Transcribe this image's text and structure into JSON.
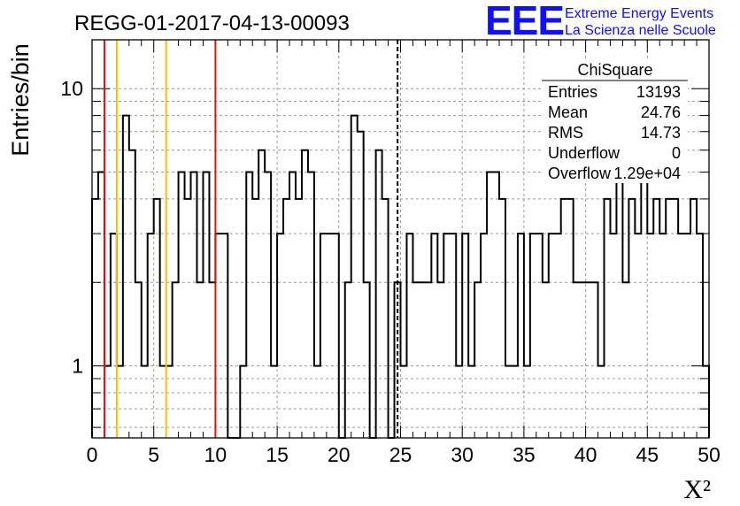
{
  "header": {
    "title": "REGG-01-2017-04-13-00093",
    "logo_text": "EEE",
    "logo_line1": "Extreme Energy Events",
    "logo_line2": "La Scienza nelle Scuole"
  },
  "stats": {
    "name": "ChiSquare",
    "rows": [
      {
        "label": "Entries",
        "value": "13193"
      },
      {
        "label": "Mean",
        "value": "24.76"
      },
      {
        "label": "RMS",
        "value": "14.73"
      },
      {
        "label": "Underflow",
        "value": "0"
      },
      {
        "label": "Overflow",
        "value": "1.29e+04"
      }
    ]
  },
  "colors": {
    "red_line": "#dd1111",
    "yellow_line": "#f2c200",
    "grid": "#9a9a9a"
  },
  "chart_data": {
    "type": "histogram",
    "xlabel": "X²",
    "ylabel": "Entries/bin",
    "xlim": [
      0,
      50
    ],
    "ylim": [
      0.55,
      15
    ],
    "yscale": "log",
    "grid": true,
    "bin_width": 0.5,
    "x_ticks": [
      0,
      5,
      10,
      15,
      20,
      25,
      30,
      35,
      40,
      45,
      50
    ],
    "y_major_ticks": [
      1,
      10
    ],
    "y_minor_ticks": [
      0.6,
      0.7,
      0.8,
      0.9,
      2,
      3,
      4,
      5,
      6,
      7,
      8,
      9
    ],
    "values": [
      4,
      5,
      1,
      3,
      1,
      8,
      6,
      2,
      1,
      3,
      4,
      1,
      1,
      2,
      5,
      4,
      5,
      2,
      5,
      2,
      3,
      3,
      0,
      0,
      1,
      5,
      4,
      6,
      5,
      1,
      3,
      4,
      5,
      4,
      6,
      5,
      1,
      3,
      3,
      3,
      0,
      2,
      8,
      7,
      2,
      0,
      6,
      4,
      0,
      2,
      1,
      3,
      2,
      2,
      2,
      3,
      2,
      3,
      3,
      1,
      3,
      1,
      2,
      3,
      5,
      5,
      4,
      1,
      1,
      3,
      1,
      3,
      3,
      2,
      3,
      3,
      4,
      4,
      2,
      2,
      2,
      2,
      1,
      4,
      3,
      6,
      2,
      4,
      3,
      5,
      3,
      4,
      3,
      4,
      4,
      3,
      3,
      4,
      3,
      1
    ],
    "vertical_lines": [
      {
        "x": 1,
        "color": "red",
        "style": "solid"
      },
      {
        "x": 2,
        "color": "yellow",
        "style": "solid"
      },
      {
        "x": 6,
        "color": "yellow",
        "style": "solid"
      },
      {
        "x": 10,
        "color": "red",
        "style": "solid"
      },
      {
        "x": 24.76,
        "color": "black",
        "style": "dashed"
      }
    ]
  }
}
